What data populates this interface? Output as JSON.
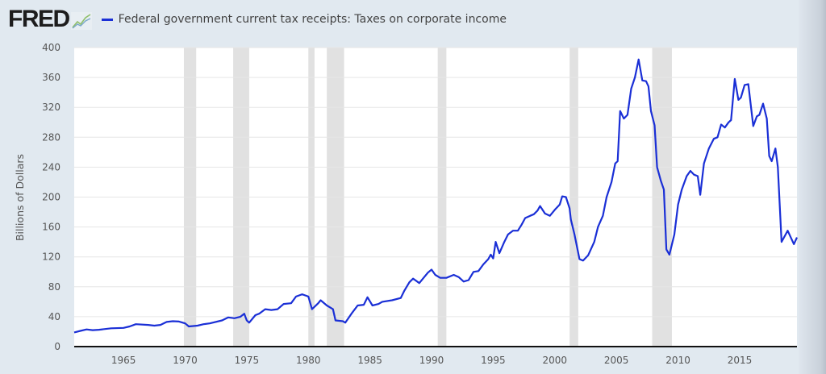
{
  "header": {
    "logo": "FRED",
    "logo_icon": "line-chart-icon",
    "legend_label": "Federal government current tax receipts: Taxes on corporate income"
  },
  "colors": {
    "series": "#1a2fd6",
    "recession": "#e1e1e1",
    "background": "#e1e9f0",
    "plot": "#ffffff"
  },
  "chart_data": {
    "type": "line",
    "title": "",
    "ylabel": "Billions of Dollars",
    "xlabel": "",
    "xlim": [
      1961.0,
      2019.65
    ],
    "ylim": [
      0,
      400
    ],
    "grid": true,
    "legend_placement": "top-left",
    "x_ticks": [
      "1965",
      "1970",
      "1975",
      "1980",
      "1985",
      "1990",
      "1995",
      "2000",
      "2005",
      "2010",
      "2015"
    ],
    "y_ticks": [
      "0",
      "40",
      "80",
      "120",
      "160",
      "200",
      "240",
      "280",
      "320",
      "360",
      "400"
    ],
    "recessions": [
      [
        1969.9,
        1970.9
      ],
      [
        1973.9,
        1975.2
      ],
      [
        1980.0,
        1980.5
      ],
      [
        1981.5,
        1982.9
      ],
      [
        1990.5,
        1991.2
      ],
      [
        2001.2,
        2001.9
      ],
      [
        2007.9,
        2009.5
      ]
    ],
    "series": [
      {
        "name": "Federal government current tax receipts: Taxes on corporate income",
        "points": [
          [
            1961.0,
            19
          ],
          [
            1961.5,
            21
          ],
          [
            1962.0,
            23
          ],
          [
            1962.5,
            22
          ],
          [
            1963.0,
            22.5
          ],
          [
            1964.0,
            24.5
          ],
          [
            1965.0,
            25
          ],
          [
            1965.5,
            27
          ],
          [
            1966.0,
            30
          ],
          [
            1967.0,
            29
          ],
          [
            1967.5,
            28
          ],
          [
            1968.0,
            29
          ],
          [
            1968.5,
            33
          ],
          [
            1969.0,
            34
          ],
          [
            1969.5,
            33.5
          ],
          [
            1970.0,
            31
          ],
          [
            1970.3,
            27
          ],
          [
            1971.0,
            28
          ],
          [
            1971.5,
            30
          ],
          [
            1972.0,
            31
          ],
          [
            1973.0,
            35
          ],
          [
            1973.5,
            39
          ],
          [
            1974.0,
            38
          ],
          [
            1974.5,
            40
          ],
          [
            1974.8,
            44
          ],
          [
            1975.0,
            35
          ],
          [
            1975.2,
            32
          ],
          [
            1975.7,
            42
          ],
          [
            1976.0,
            44
          ],
          [
            1976.5,
            50
          ],
          [
            1977.0,
            49
          ],
          [
            1977.5,
            50
          ],
          [
            1978.0,
            57
          ],
          [
            1978.6,
            58
          ],
          [
            1979.0,
            67
          ],
          [
            1979.5,
            70
          ],
          [
            1980.0,
            67
          ],
          [
            1980.3,
            50
          ],
          [
            1980.8,
            58
          ],
          [
            1981.0,
            62
          ],
          [
            1981.5,
            55
          ],
          [
            1982.0,
            50
          ],
          [
            1982.2,
            35
          ],
          [
            1982.8,
            34
          ],
          [
            1983.0,
            32
          ],
          [
            1983.5,
            44
          ],
          [
            1984.0,
            55
          ],
          [
            1984.5,
            56
          ],
          [
            1984.8,
            66
          ],
          [
            1985.2,
            55
          ],
          [
            1985.7,
            57
          ],
          [
            1986.0,
            60
          ],
          [
            1986.8,
            62
          ],
          [
            1987.5,
            65
          ],
          [
            1987.8,
            75
          ],
          [
            1988.2,
            86
          ],
          [
            1988.5,
            91
          ],
          [
            1989.0,
            85
          ],
          [
            1989.7,
            99
          ],
          [
            1990.0,
            103
          ],
          [
            1990.3,
            96
          ],
          [
            1990.7,
            92
          ],
          [
            1991.2,
            92
          ],
          [
            1991.8,
            96
          ],
          [
            1992.2,
            93
          ],
          [
            1992.6,
            87
          ],
          [
            1993.0,
            89
          ],
          [
            1993.4,
            100
          ],
          [
            1993.8,
            101
          ],
          [
            1994.2,
            110
          ],
          [
            1994.6,
            117
          ],
          [
            1994.8,
            123
          ],
          [
            1995.0,
            118
          ],
          [
            1995.2,
            140
          ],
          [
            1995.5,
            125
          ],
          [
            1995.9,
            140
          ],
          [
            1996.2,
            150
          ],
          [
            1996.6,
            155
          ],
          [
            1997.0,
            155
          ],
          [
            1997.3,
            163
          ],
          [
            1997.6,
            172
          ],
          [
            1998.0,
            175
          ],
          [
            1998.3,
            177
          ],
          [
            1998.6,
            182
          ],
          [
            1998.8,
            188
          ],
          [
            1999.2,
            178
          ],
          [
            1999.6,
            175
          ],
          [
            2000.0,
            183
          ],
          [
            2000.4,
            190
          ],
          [
            2000.6,
            201
          ],
          [
            2000.9,
            200
          ],
          [
            2001.2,
            185
          ],
          [
            2001.3,
            170
          ],
          [
            2001.6,
            150
          ],
          [
            2002.0,
            117
          ],
          [
            2002.3,
            115
          ],
          [
            2002.7,
            122
          ],
          [
            2003.2,
            140
          ],
          [
            2003.5,
            160
          ],
          [
            2003.9,
            175
          ],
          [
            2004.2,
            200
          ],
          [
            2004.6,
            220
          ],
          [
            2004.9,
            245
          ],
          [
            2005.1,
            248
          ],
          [
            2005.3,
            315
          ],
          [
            2005.6,
            305
          ],
          [
            2005.9,
            310
          ],
          [
            2006.2,
            345
          ],
          [
            2006.5,
            360
          ],
          [
            2006.8,
            384
          ],
          [
            2007.1,
            356
          ],
          [
            2007.4,
            355
          ],
          [
            2007.6,
            348
          ],
          [
            2007.8,
            315
          ],
          [
            2008.1,
            296
          ],
          [
            2008.3,
            240
          ],
          [
            2008.6,
            222
          ],
          [
            2008.85,
            210
          ],
          [
            2009.05,
            130
          ],
          [
            2009.3,
            123
          ],
          [
            2009.7,
            150
          ],
          [
            2010.0,
            190
          ],
          [
            2010.3,
            210
          ],
          [
            2010.7,
            228
          ],
          [
            2011.0,
            235
          ],
          [
            2011.3,
            230
          ],
          [
            2011.6,
            228
          ],
          [
            2011.8,
            203
          ],
          [
            2012.1,
            245
          ],
          [
            2012.5,
            265
          ],
          [
            2012.9,
            278
          ],
          [
            2013.2,
            280
          ],
          [
            2013.5,
            297
          ],
          [
            2013.8,
            293
          ],
          [
            2014.1,
            300
          ],
          [
            2014.3,
            303
          ],
          [
            2014.6,
            358
          ],
          [
            2014.9,
            330
          ],
          [
            2015.1,
            333
          ],
          [
            2015.4,
            350
          ],
          [
            2015.7,
            351
          ],
          [
            2016.1,
            295
          ],
          [
            2016.4,
            308
          ],
          [
            2016.6,
            310
          ],
          [
            2016.9,
            325
          ],
          [
            2017.2,
            305
          ],
          [
            2017.4,
            255
          ],
          [
            2017.6,
            248
          ],
          [
            2017.9,
            265
          ],
          [
            2018.1,
            240
          ],
          [
            2018.4,
            140
          ],
          [
            2018.9,
            155
          ],
          [
            2019.4,
            137
          ],
          [
            2019.65,
            146
          ]
        ]
      }
    ]
  }
}
